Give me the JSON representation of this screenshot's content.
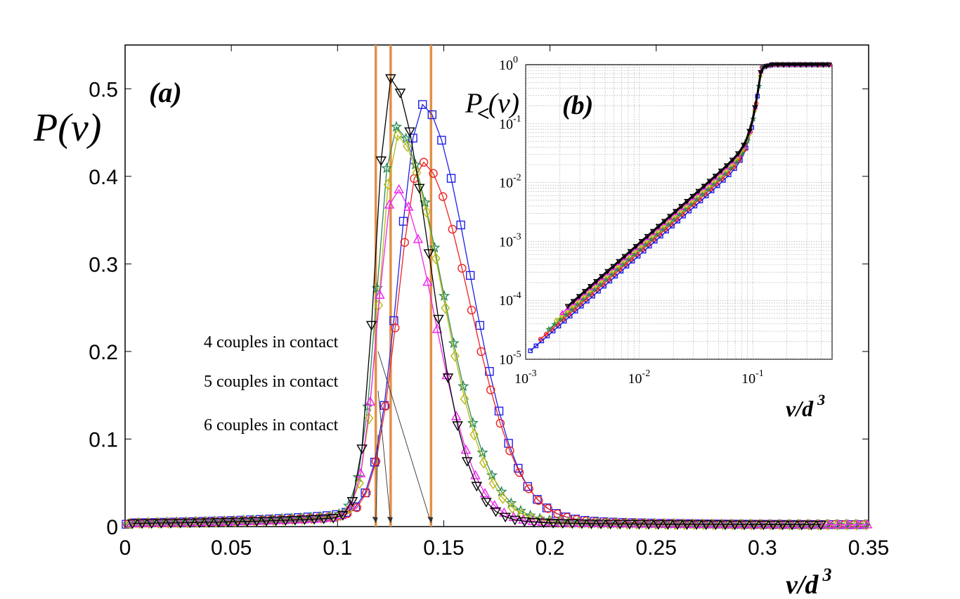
{
  "chart_data": [
    {
      "type": "line",
      "panel_label": "(a)",
      "ylabel": "P(v)",
      "xlabel": "v/d",
      "xlabel_exp": "3",
      "xlim": [
        0,
        0.35
      ],
      "ylim": [
        0,
        0.55
      ],
      "xticks": [
        0,
        0.05,
        0.1,
        0.15,
        0.2,
        0.25,
        0.3,
        0.35
      ],
      "xtick_labels": [
        "0",
        "0.05",
        "0.1",
        "0.15",
        "0.2",
        "0.25",
        "0.3",
        "0.35"
      ],
      "yticks": [
        0,
        0.1,
        0.2,
        0.3,
        0.4,
        0.5
      ],
      "ytick_labels": [
        "0",
        "0.1",
        "0.2",
        "0.3",
        "0.4",
        "0.5"
      ],
      "vlines": [
        0.118,
        0.125,
        0.144
      ],
      "vline_color": "#e0914a",
      "annotations": [
        {
          "text": "4 couples in contact",
          "x": 0.045,
          "y": 0.2,
          "target_x": 0.144
        },
        {
          "text": "5 couples in contact",
          "x": 0.045,
          "y": 0.155,
          "target_x": 0.125
        },
        {
          "text": "6 couples in contact",
          "x": 0.045,
          "y": 0.105,
          "target_x": 0.118
        }
      ],
      "series": [
        {
          "name": "squares",
          "marker": "square",
          "color": "#1f1fe6",
          "peak": 0.48,
          "peak_x": 0.14,
          "left_w": 0.011,
          "right_w": 0.022,
          "base": 0.022
        },
        {
          "name": "circles",
          "marker": "circle",
          "color": "#ee2222",
          "peak": 0.415,
          "peak_x": 0.1395,
          "left_w": 0.011,
          "right_w": 0.023,
          "base": 0.018
        },
        {
          "name": "stars",
          "marker": "star",
          "color": "#2e8b57",
          "peak": 0.455,
          "peak_x": 0.127,
          "left_w": 0.008,
          "right_w": 0.022,
          "base": 0.016
        },
        {
          "name": "diamonds",
          "marker": "diamond",
          "color": "#b8b814",
          "peak": 0.445,
          "peak_x": 0.128,
          "left_w": 0.008,
          "right_w": 0.021,
          "base": 0.014
        },
        {
          "name": "triangles-up",
          "marker": "triangle-up",
          "color": "#ee22ee",
          "peak": 0.385,
          "peak_x": 0.127,
          "left_w": 0.008,
          "right_w": 0.019,
          "base": 0.012
        },
        {
          "name": "triangles-down",
          "marker": "triangle-down",
          "color": "#000000",
          "peak": 0.51,
          "peak_x": 0.125,
          "left_w": 0.007,
          "right_w": 0.018,
          "base": 0.012
        }
      ]
    },
    {
      "type": "line",
      "scale": "log-log",
      "panel_label": "(b)",
      "ylabel": "P",
      "ylabel_sub": "<",
      "ylabel_arg": "(v)",
      "xlabel": "v/d",
      "xlabel_exp": "3",
      "xlim": [
        0.001,
        0.5
      ],
      "ylim": [
        1e-05,
        1
      ],
      "xtick_labels": [
        {
          "base": "10",
          "exp": "-3",
          "value": 0.001
        },
        {
          "base": "10",
          "exp": "-2",
          "value": 0.01
        },
        {
          "base": "10",
          "exp": "-1",
          "value": 0.1
        }
      ],
      "ytick_labels": [
        {
          "base": "10",
          "exp": "0",
          "value": 1
        },
        {
          "base": "10",
          "exp": "-1",
          "value": 0.1
        },
        {
          "base": "10",
          "exp": "-2",
          "value": 0.01
        },
        {
          "base": "10",
          "exp": "-3",
          "value": 0.001
        },
        {
          "base": "10",
          "exp": "-4",
          "value": 0.0001
        },
        {
          "base": "10",
          "exp": "-5",
          "value": 1e-05
        }
      ],
      "grid": true
    }
  ]
}
